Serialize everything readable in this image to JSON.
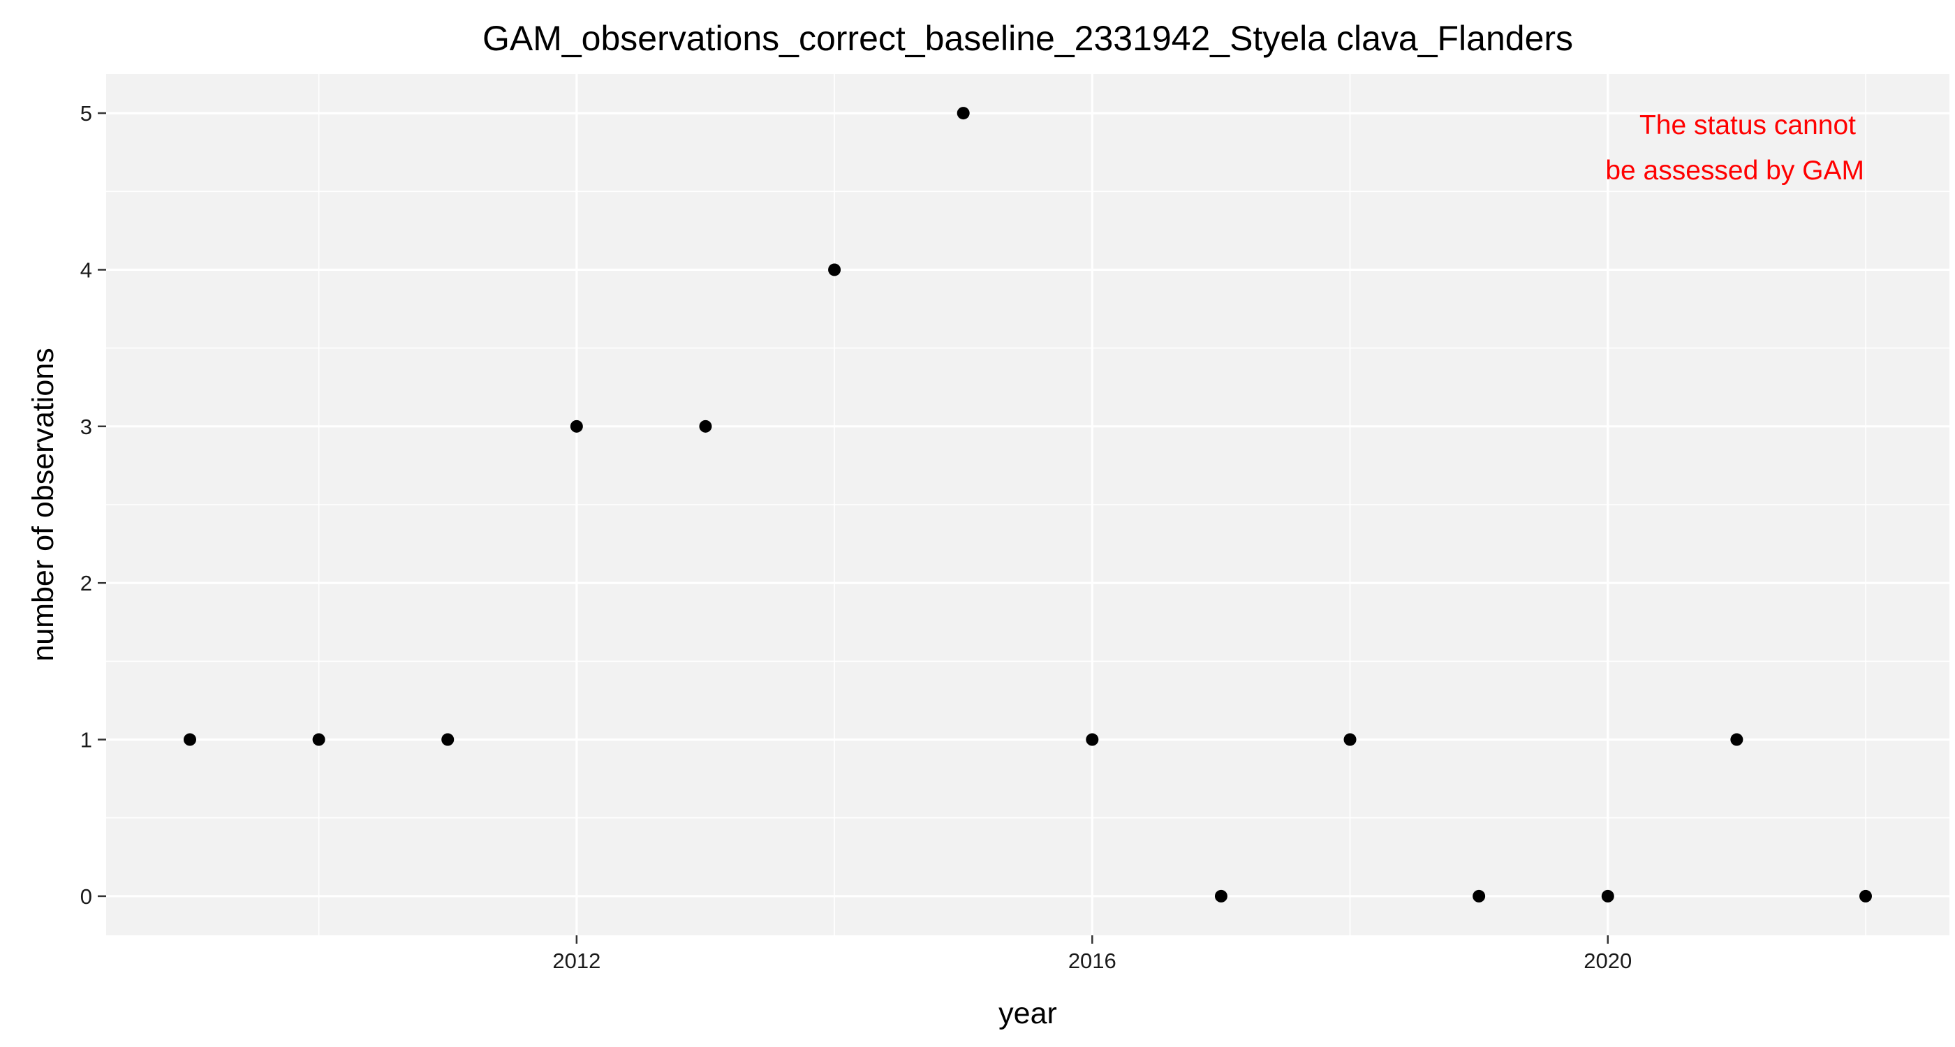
{
  "chart_data": {
    "type": "scatter",
    "title": "GAM_observations_correct_baseline_2331942_Styela clava_Flanders",
    "xlabel": "year",
    "ylabel": "number of observations",
    "x": [
      2009,
      2010,
      2011,
      2012,
      2013,
      2014,
      2015,
      2016,
      2017,
      2018,
      2019,
      2020,
      2021,
      2022
    ],
    "y": [
      1,
      1,
      1,
      3,
      3,
      4,
      5,
      1,
      0,
      1,
      0,
      0,
      1,
      0
    ],
    "xlim": [
      2008.35,
      2022.65
    ],
    "ylim": [
      -0.25,
      5.25
    ],
    "x_ticks": [
      2012,
      2016,
      2020
    ],
    "x_minor_ticks": [
      2010,
      2014,
      2018,
      2022
    ],
    "y_ticks": [
      0,
      1,
      2,
      3,
      4,
      5
    ],
    "y_minor_ticks": [
      0.5,
      1.5,
      2.5,
      3.5,
      4.5
    ],
    "grid": true,
    "legend": "none",
    "annotation": {
      "lines": [
        "The status cannot",
        "be assessed by GAM"
      ],
      "position": "top-right",
      "color": "#ff0000"
    },
    "colors": {
      "panel_background": "#f2f2f2",
      "grid": "#ffffff",
      "point": "#000000",
      "tick": "#333333"
    }
  }
}
